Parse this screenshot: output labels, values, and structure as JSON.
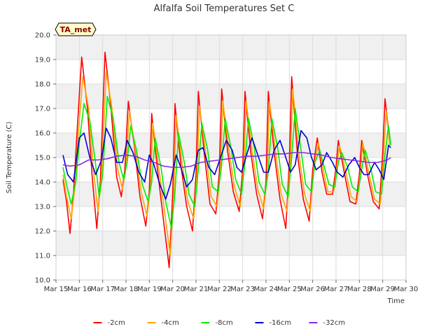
{
  "chart_data": {
    "type": "line",
    "title": "Alfalfa Soil Temperatures Set C",
    "xlabel": "Time",
    "ylabel": "Soil Temperature (C)",
    "badge": "TA_met",
    "ylim": [
      10.0,
      20.0
    ],
    "y_ticks": [
      10.0,
      11.0,
      12.0,
      13.0,
      14.0,
      15.0,
      16.0,
      17.0,
      18.0,
      19.0,
      20.0
    ],
    "y_tick_labels": [
      "10.0",
      "11.0",
      "12.0",
      "13.0",
      "14.0",
      "15.0",
      "16.0",
      "17.0",
      "18.0",
      "19.0",
      "20.0"
    ],
    "xlim": [
      15,
      30
    ],
    "x_ticks": [
      15,
      16,
      17,
      18,
      19,
      20,
      21,
      22,
      23,
      24,
      25,
      26,
      27,
      28,
      29,
      30
    ],
    "x_tick_labels": [
      "Mar 15",
      "Mar 16",
      "Mar 17",
      "Mar 18",
      "Mar 19",
      "Mar 20",
      "Mar 21",
      "Mar 22",
      "Mar 23",
      "Mar 24",
      "Mar 25",
      "Mar 26",
      "Mar 27",
      "Mar 28",
      "Mar 29",
      "Mar 30"
    ],
    "grid": true,
    "banded_background": true,
    "legend_position": "bottom",
    "series": [
      {
        "name": "-2cm",
        "color": "#ff0000",
        "x": [
          15.3,
          15.45,
          15.6,
          15.75,
          15.9,
          16.1,
          16.35,
          16.55,
          16.75,
          16.9,
          17.1,
          17.35,
          17.6,
          17.8,
          17.95,
          18.1,
          18.35,
          18.6,
          18.85,
          19.0,
          19.1,
          19.35,
          19.6,
          19.85,
          20.0,
          20.1,
          20.35,
          20.6,
          20.85,
          21.0,
          21.1,
          21.35,
          21.6,
          21.85,
          22.0,
          22.1,
          22.35,
          22.6,
          22.85,
          23.0,
          23.1,
          23.35,
          23.6,
          23.85,
          24.0,
          24.1,
          24.35,
          24.6,
          24.85,
          25.0,
          25.1,
          25.35,
          25.6,
          25.85,
          26.0,
          26.2,
          26.4,
          26.6,
          26.85,
          27.0,
          27.1,
          27.35,
          27.6,
          27.85,
          28.0,
          28.1,
          28.35,
          28.6,
          28.85,
          29.0,
          29.1,
          29.3
        ],
        "y": [
          14.1,
          13.2,
          11.9,
          13.5,
          16.0,
          19.1,
          17.0,
          14.2,
          12.1,
          14.0,
          19.3,
          17.1,
          14.2,
          13.4,
          14.5,
          17.3,
          15.5,
          13.4,
          12.2,
          13.6,
          16.8,
          14.5,
          12.5,
          10.5,
          13.5,
          17.2,
          14.7,
          13.0,
          12.0,
          14.3,
          17.7,
          15.2,
          13.1,
          12.7,
          14.4,
          17.8,
          15.3,
          13.6,
          12.8,
          14.5,
          17.7,
          15.2,
          13.5,
          12.5,
          14.0,
          17.7,
          15.2,
          13.3,
          12.1,
          14.8,
          18.3,
          15.1,
          13.3,
          12.4,
          14.5,
          15.8,
          14.4,
          13.5,
          13.5,
          14.6,
          15.7,
          14.4,
          13.2,
          13.1,
          14.3,
          15.7,
          14.3,
          13.2,
          12.9,
          15.2,
          17.4,
          15.7
        ]
      },
      {
        "name": "-4cm",
        "color": "#ffa500",
        "x": [
          15.3,
          15.45,
          15.65,
          15.8,
          15.95,
          16.15,
          16.4,
          16.6,
          16.8,
          16.95,
          17.15,
          17.4,
          17.65,
          17.85,
          18.0,
          18.15,
          18.4,
          18.65,
          18.9,
          19.05,
          19.15,
          19.4,
          19.65,
          19.9,
          20.05,
          20.15,
          20.4,
          20.65,
          20.9,
          21.05,
          21.15,
          21.4,
          21.65,
          21.9,
          22.05,
          22.15,
          22.4,
          22.65,
          22.9,
          23.05,
          23.15,
          23.4,
          23.65,
          23.9,
          24.05,
          24.15,
          24.4,
          24.65,
          24.9,
          25.05,
          25.15,
          25.4,
          25.65,
          25.9,
          26.05,
          26.25,
          26.45,
          26.65,
          26.9,
          27.05,
          27.15,
          27.4,
          27.65,
          27.9,
          28.05,
          28.15,
          28.4,
          28.65,
          28.9,
          29.05,
          29.15,
          29.3
        ],
        "y": [
          14.3,
          13.4,
          12.5,
          13.7,
          15.9,
          18.3,
          17.0,
          14.5,
          12.8,
          14.2,
          18.5,
          17.0,
          14.5,
          13.7,
          14.6,
          16.9,
          15.3,
          13.6,
          12.6,
          13.8,
          16.4,
          14.6,
          12.8,
          11.0,
          13.5,
          16.7,
          14.8,
          13.2,
          12.5,
          14.4,
          17.1,
          15.3,
          13.4,
          13.0,
          14.5,
          17.3,
          15.4,
          13.8,
          13.0,
          14.6,
          17.3,
          15.3,
          13.7,
          12.9,
          14.2,
          17.3,
          15.3,
          13.5,
          12.8,
          14.9,
          17.8,
          15.2,
          13.5,
          12.8,
          14.6,
          15.6,
          14.5,
          13.6,
          13.6,
          14.7,
          15.5,
          14.5,
          13.4,
          13.2,
          14.4,
          15.6,
          14.4,
          13.3,
          13.1,
          15.2,
          16.9,
          15.5
        ]
      },
      {
        "name": "-8cm",
        "color": "#00ee00",
        "x": [
          15.3,
          15.45,
          15.65,
          15.85,
          16.0,
          16.2,
          16.45,
          16.7,
          16.85,
          17.0,
          17.2,
          17.45,
          17.7,
          17.9,
          18.05,
          18.2,
          18.45,
          18.7,
          18.95,
          19.1,
          19.25,
          19.5,
          19.7,
          19.95,
          20.1,
          20.25,
          20.5,
          20.7,
          20.95,
          21.1,
          21.25,
          21.5,
          21.7,
          21.95,
          22.1,
          22.25,
          22.5,
          22.7,
          22.95,
          23.1,
          23.25,
          23.5,
          23.7,
          23.95,
          24.1,
          24.25,
          24.5,
          24.7,
          24.95,
          25.1,
          25.25,
          25.5,
          25.7,
          25.95,
          26.1,
          26.3,
          26.5,
          26.7,
          26.95,
          27.1,
          27.25,
          27.5,
          27.7,
          27.95,
          28.1,
          28.25,
          28.5,
          28.7,
          28.95,
          29.1,
          29.25,
          29.35
        ],
        "y": [
          14.6,
          13.9,
          13.1,
          14.0,
          15.6,
          17.2,
          16.5,
          14.7,
          13.4,
          14.3,
          17.5,
          16.6,
          14.8,
          14.1,
          14.8,
          16.3,
          15.3,
          13.9,
          13.2,
          14.0,
          15.8,
          14.6,
          13.2,
          12.1,
          13.6,
          16.0,
          14.8,
          13.5,
          13.0,
          14.5,
          16.4,
          15.3,
          13.8,
          13.6,
          14.7,
          16.6,
          15.4,
          14.1,
          13.5,
          14.8,
          16.6,
          15.4,
          14.0,
          13.5,
          14.4,
          16.6,
          15.4,
          13.9,
          13.4,
          15.0,
          17.0,
          15.3,
          13.9,
          13.6,
          14.8,
          15.3,
          14.6,
          13.9,
          13.8,
          14.8,
          15.2,
          14.6,
          13.8,
          13.6,
          14.5,
          15.3,
          14.5,
          13.6,
          13.5,
          15.1,
          16.3,
          15.5
        ]
      },
      {
        "name": "-16cm",
        "color": "#0000cc",
        "x": [
          15.3,
          15.5,
          15.75,
          16.0,
          16.2,
          16.45,
          16.7,
          16.95,
          17.15,
          17.35,
          17.6,
          17.85,
          18.05,
          18.3,
          18.55,
          18.8,
          19.0,
          19.2,
          19.45,
          19.7,
          19.9,
          20.15,
          20.35,
          20.6,
          20.85,
          21.1,
          21.3,
          21.55,
          21.8,
          22.05,
          22.3,
          22.55,
          22.75,
          22.95,
          23.2,
          23.4,
          23.65,
          23.9,
          24.1,
          24.35,
          24.6,
          24.85,
          25.05,
          25.25,
          25.5,
          25.75,
          25.95,
          26.15,
          26.4,
          26.6,
          26.85,
          27.05,
          27.3,
          27.55,
          27.8,
          28.0,
          28.2,
          28.4,
          28.65,
          28.85,
          29.05,
          29.25,
          29.35
        ],
        "y": [
          15.1,
          14.3,
          14.0,
          15.8,
          16.0,
          15.0,
          14.3,
          14.9,
          16.2,
          15.8,
          14.8,
          14.8,
          15.7,
          15.2,
          14.4,
          14.0,
          15.1,
          14.7,
          13.9,
          13.3,
          13.9,
          15.1,
          14.6,
          13.8,
          14.1,
          15.3,
          15.4,
          14.6,
          14.3,
          15.0,
          15.7,
          15.3,
          14.6,
          14.4,
          15.2,
          15.8,
          15.1,
          14.4,
          14.4,
          15.3,
          15.7,
          15.0,
          14.4,
          14.7,
          16.1,
          15.8,
          15.0,
          14.5,
          14.7,
          15.2,
          14.8,
          14.4,
          14.2,
          14.7,
          15.0,
          14.6,
          14.3,
          14.3,
          14.8,
          14.5,
          14.1,
          15.5,
          15.4
        ]
      },
      {
        "name": "-32cm",
        "color": "#8a2be2",
        "x": [
          15.3,
          15.6,
          16.0,
          16.4,
          16.8,
          17.2,
          17.6,
          18.0,
          18.4,
          18.8,
          19.2,
          19.6,
          20.0,
          20.4,
          20.8,
          21.2,
          21.6,
          22.0,
          22.4,
          22.8,
          23.2,
          23.6,
          24.0,
          24.4,
          24.8,
          25.2,
          25.6,
          26.0,
          26.4,
          26.8,
          27.2,
          27.6,
          28.0,
          28.4,
          28.8,
          29.2,
          29.35
        ],
        "y": [
          14.7,
          14.65,
          14.7,
          14.9,
          14.9,
          14.95,
          15.05,
          15.1,
          15.05,
          14.9,
          14.8,
          14.65,
          14.6,
          14.6,
          14.65,
          14.8,
          14.85,
          14.9,
          14.95,
          15.0,
          15.05,
          15.05,
          15.1,
          15.15,
          15.15,
          15.2,
          15.2,
          15.15,
          15.1,
          15.0,
          14.95,
          14.9,
          14.85,
          14.8,
          14.8,
          14.9,
          15.0
        ]
      }
    ]
  }
}
